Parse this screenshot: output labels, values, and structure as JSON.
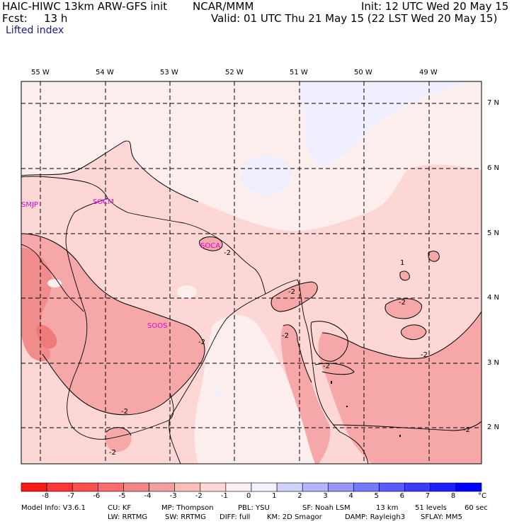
{
  "header": {
    "title": "HAIC-HIWC 13km ARW-GFS init",
    "org": "NCAR/MMM",
    "init": "Init: 12 UTC Wed 20 May 15",
    "fcst_label": "Fcst:",
    "fcst_value": "13 h",
    "valid": "Valid: 01 UTC Thu 21 May 15 (22 LST Wed 20 May 15)",
    "field": "Lifted index"
  },
  "map": {
    "lon_labels": [
      "55 W",
      "54 W",
      "53 W",
      "52 W",
      "51 W",
      "50 W",
      "49 W"
    ],
    "lat_labels": [
      "7 N",
      "6 N",
      "5 N",
      "4 N",
      "3 N",
      "2 N"
    ],
    "stations": [
      "SMJP",
      "SOCM",
      "SOCA",
      "SOOS"
    ],
    "contour_labels": [
      "-2",
      "-2",
      "-2",
      "-2",
      "-2",
      "-2",
      "-2",
      "-2",
      "-2",
      "1",
      "-2"
    ]
  },
  "colorbar": {
    "levels": [
      "-8",
      "-7",
      "-6",
      "-5",
      "-4",
      "-3",
      "-2",
      "-1",
      "0",
      "1",
      "2",
      "3",
      "4",
      "5",
      "6",
      "7",
      "8"
    ],
    "unit": "°C",
    "colors": [
      "#ff1a1a",
      "#ff3535",
      "#ff4f4f",
      "#ff6b6b",
      "#f58585",
      "#f5a0a0",
      "#fcbcbc",
      "#fdd6d6",
      "#fdeeee",
      "#f2f2ff",
      "#d2d2ff",
      "#b4b4ff",
      "#9696ff",
      "#7878ff",
      "#5a5aff",
      "#3c3cff",
      "#1e1eff",
      "#0000ff"
    ]
  },
  "model_info": {
    "line1": [
      "Model Info: V3.6.1",
      "CU: KF",
      "MP: Thompson",
      "PBL: YSU",
      "SF: Noah LSM",
      "13 km",
      "51 levels",
      "60 sec"
    ],
    "line2": [
      "LW: RRTMG",
      "SW: RRTMG",
      "DIFF: full",
      "KM: 2D Smagor",
      "DAMP: Rayleigh3",
      "SFLAY: MM5"
    ]
  }
}
